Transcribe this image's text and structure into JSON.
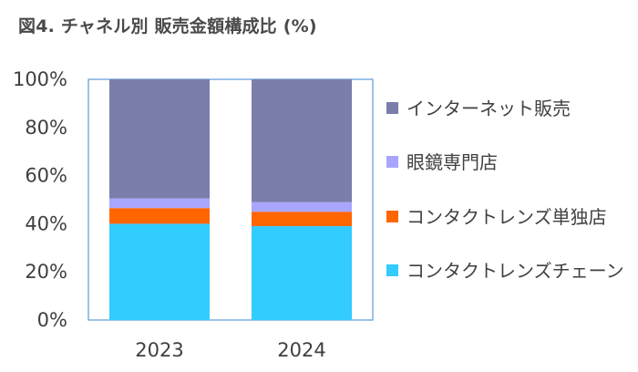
{
  "title": "図4. チャネル別 販売金額構成比 (%)",
  "chart_data": {
    "type": "bar",
    "stacked": true,
    "title": "図4. チャネル別 販売金額構成比 (%)",
    "xlabel": "",
    "ylabel": "",
    "ylim": [
      0,
      100
    ],
    "y_ticks": [
      "0%",
      "20%",
      "40%",
      "60%",
      "80%",
      "100%"
    ],
    "categories": [
      "2023",
      "2024"
    ],
    "grid": false,
    "legend_position": "right",
    "series": [
      {
        "name": "コンタクトレンズチェーン",
        "color": "#33ccff",
        "values": [
          40,
          39
        ]
      },
      {
        "name": "コンタクトレンズ単独店",
        "color": "#ff6600",
        "values": [
          6.5,
          6
        ]
      },
      {
        "name": "眼鏡専門店",
        "color": "#a9a6ff",
        "values": [
          4,
          4
        ]
      },
      {
        "name": "インターネット販売",
        "color": "#7a7eaa",
        "values": [
          49.5,
          51
        ]
      }
    ]
  }
}
